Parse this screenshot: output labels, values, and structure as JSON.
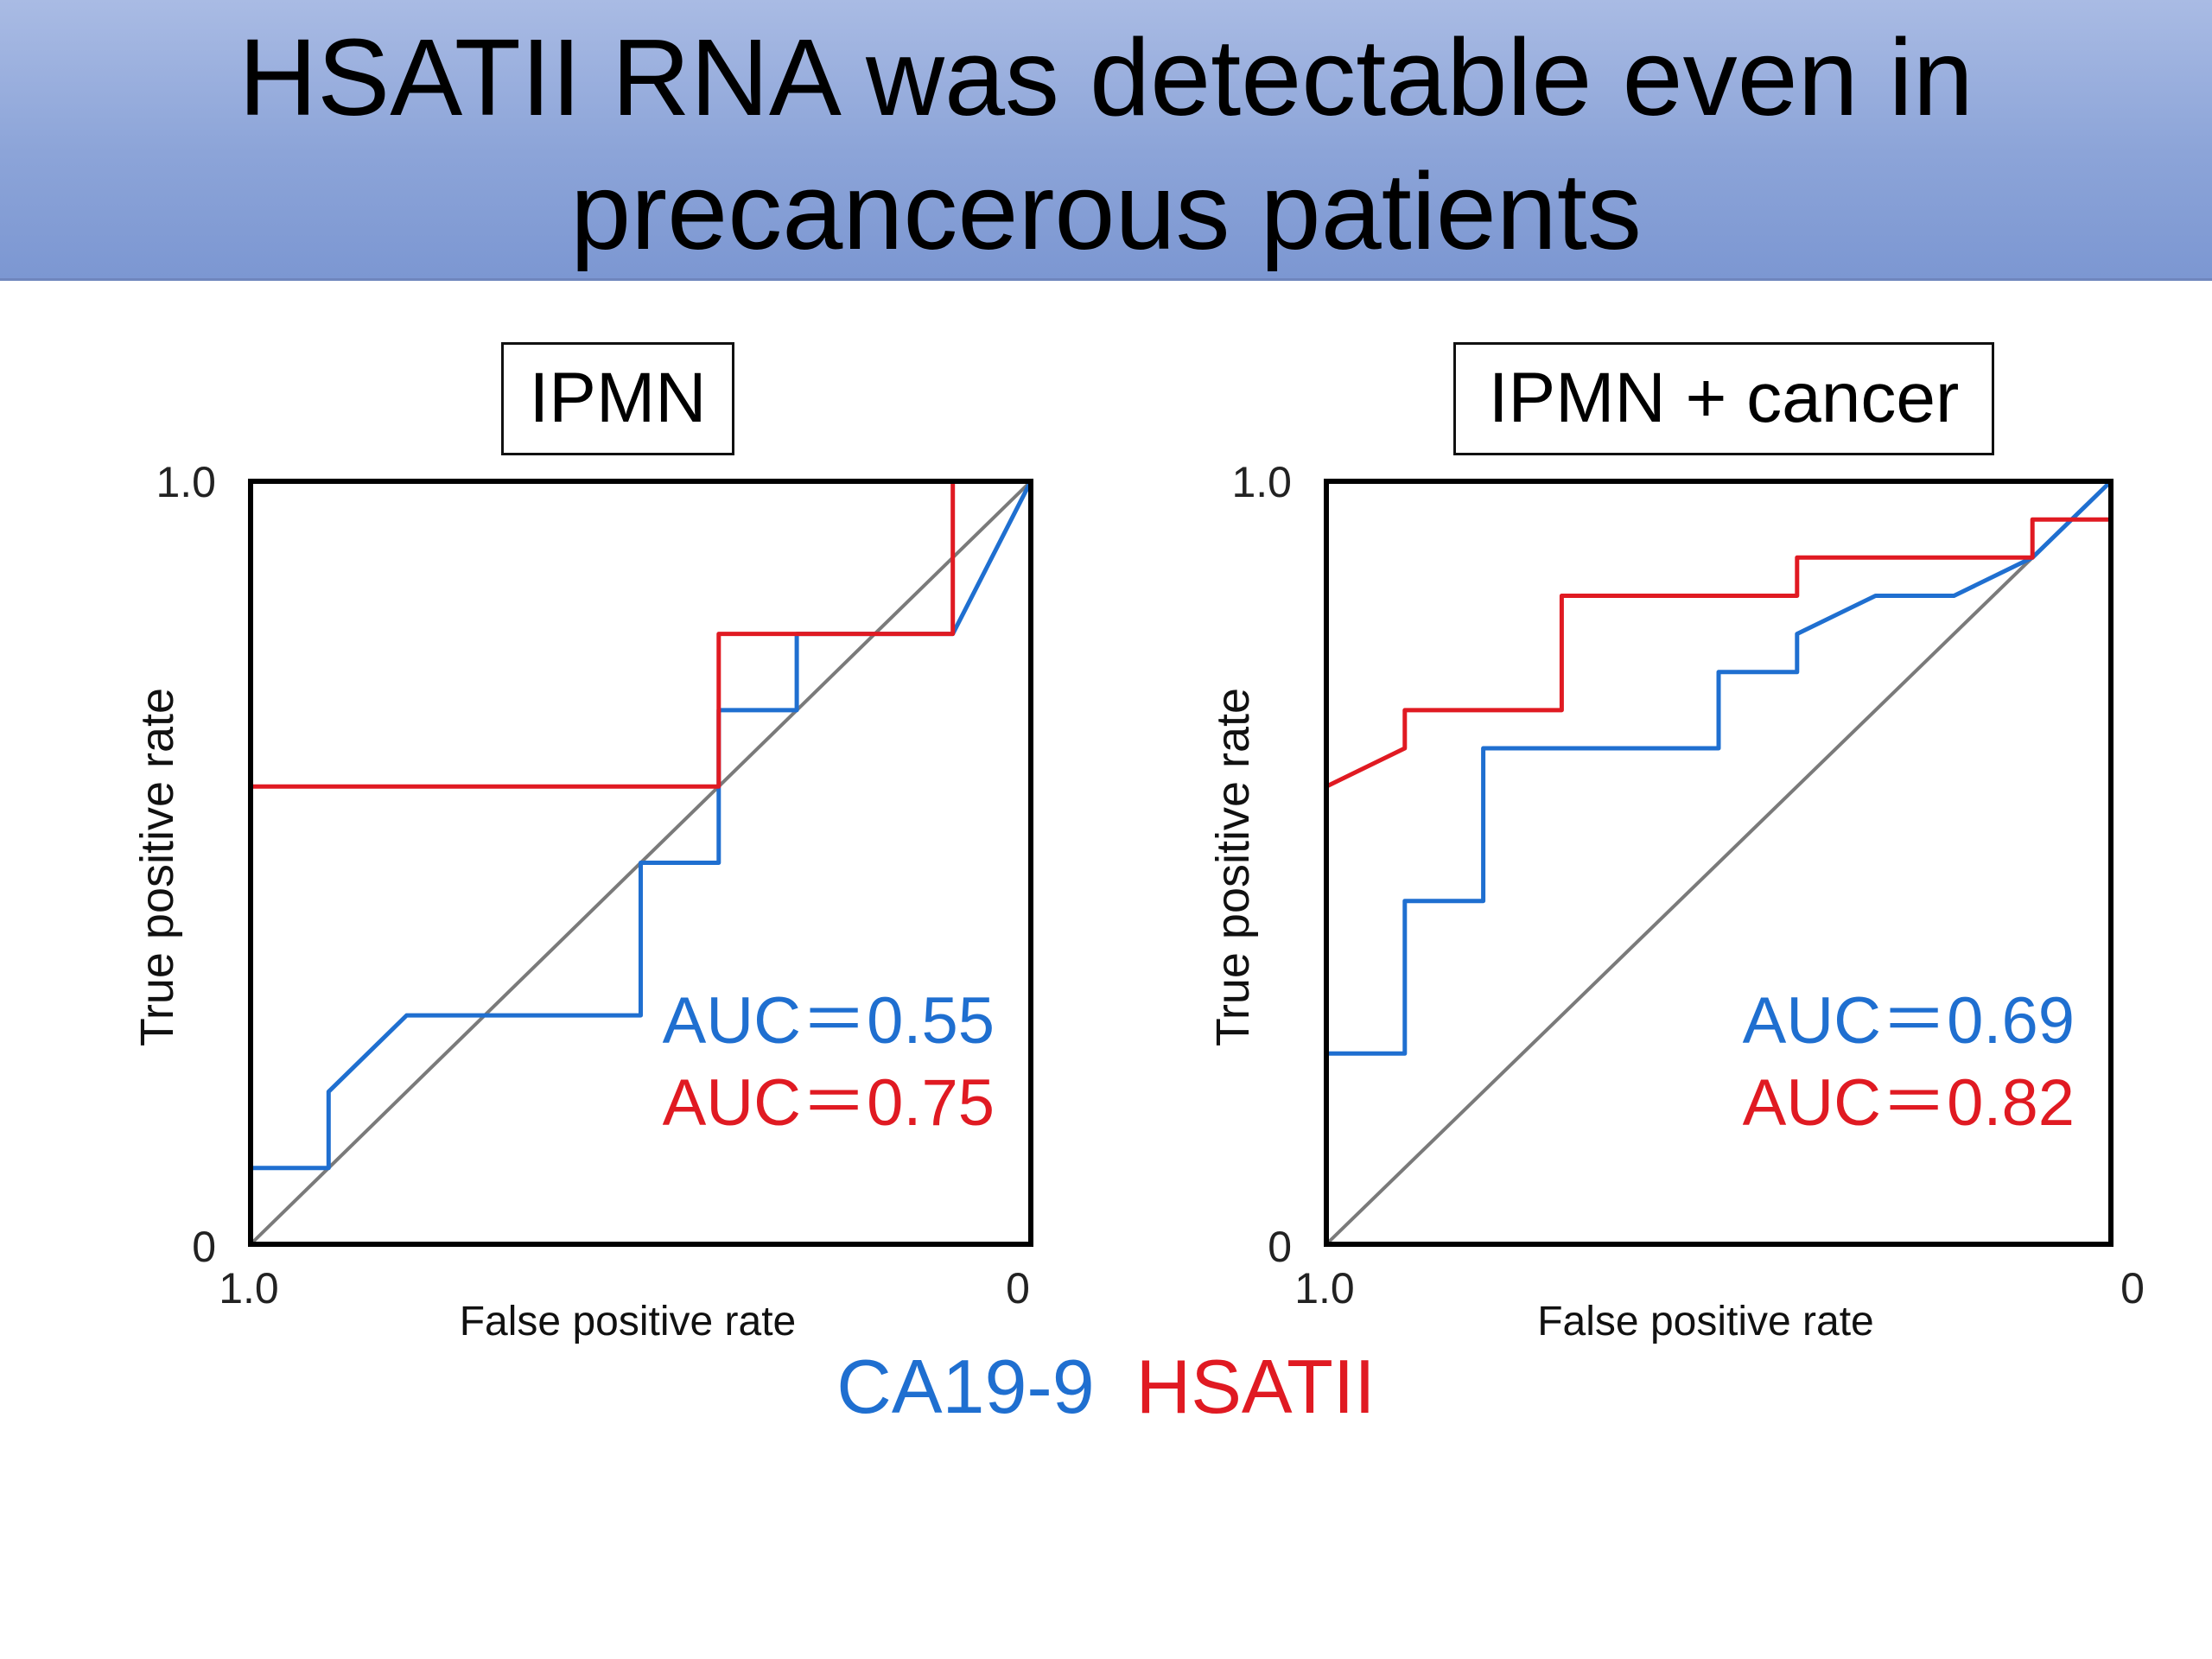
{
  "title": {
    "line1": "HSATII RNA was detectable even in",
    "line2": "precancerous patients"
  },
  "colors": {
    "ca199": "#1f6fd0",
    "hsatii": "#e01a22",
    "diagonal": "#7a7a7a"
  },
  "legend": [
    {
      "label": "CA19-9",
      "color": "#1f6fd0"
    },
    {
      "label": "HSATII",
      "color": "#e01a22"
    }
  ],
  "chart_data": [
    {
      "type": "line",
      "title": "IPMN",
      "xlabel": "False positive rate",
      "ylabel": "True positive rate",
      "xlim": [
        1.0,
        0
      ],
      "ylim": [
        0,
        1.0
      ],
      "x_ticks": [
        "1.0",
        "0"
      ],
      "y_ticks": [
        "0",
        "1.0"
      ],
      "grid": false,
      "diagonal": true,
      "series": [
        {
          "name": "CA19-9",
          "color": "#1f6fd0",
          "auc_label": "AUC＝0.55",
          "points": [
            [
              1.0,
              0
            ],
            [
              1.0,
              0.1
            ],
            [
              0.9,
              0.1
            ],
            [
              0.9,
              0.2
            ],
            [
              0.8,
              0.3
            ],
            [
              0.5,
              0.3
            ],
            [
              0.5,
              0.5
            ],
            [
              0.4,
              0.5
            ],
            [
              0.4,
              0.7
            ],
            [
              0.3,
              0.7
            ],
            [
              0.3,
              0.8
            ],
            [
              0.1,
              0.8
            ],
            [
              0.0,
              1.0
            ]
          ]
        },
        {
          "name": "HSATII",
          "color": "#e01a22",
          "auc_label": "AUC＝0.75",
          "points": [
            [
              1.0,
              0
            ],
            [
              1.0,
              0.6
            ],
            [
              0.4,
              0.6
            ],
            [
              0.4,
              0.8
            ],
            [
              0.1,
              0.8
            ],
            [
              0.1,
              1.0
            ],
            [
              0.0,
              1.0
            ]
          ]
        }
      ]
    },
    {
      "type": "line",
      "title": "IPMN + cancer",
      "xlabel": "False positive rate",
      "ylabel": "True positive rate",
      "xlim": [
        1.0,
        0
      ],
      "ylim": [
        0,
        1.0
      ],
      "x_ticks": [
        "1.0",
        "0"
      ],
      "y_ticks": [
        "0",
        "1.0"
      ],
      "grid": false,
      "diagonal": true,
      "series": [
        {
          "name": "CA19-9",
          "color": "#1f6fd0",
          "auc_label": "AUC＝0.69",
          "points": [
            [
              1.0,
              0
            ],
            [
              1.0,
              0.25
            ],
            [
              0.9,
              0.25
            ],
            [
              0.9,
              0.45
            ],
            [
              0.8,
              0.45
            ],
            [
              0.8,
              0.65
            ],
            [
              0.5,
              0.65
            ],
            [
              0.5,
              0.75
            ],
            [
              0.4,
              0.75
            ],
            [
              0.4,
              0.8
            ],
            [
              0.3,
              0.85
            ],
            [
              0.2,
              0.85
            ],
            [
              0.1,
              0.9
            ],
            [
              0.05,
              0.95
            ],
            [
              0.0,
              1.0
            ]
          ]
        },
        {
          "name": "HSATII",
          "color": "#e01a22",
          "auc_label": "AUC＝0.82",
          "points": [
            [
              1.0,
              0
            ],
            [
              1.0,
              0.6
            ],
            [
              0.9,
              0.65
            ],
            [
              0.9,
              0.7
            ],
            [
              0.7,
              0.7
            ],
            [
              0.7,
              0.85
            ],
            [
              0.4,
              0.85
            ],
            [
              0.4,
              0.9
            ],
            [
              0.1,
              0.9
            ],
            [
              0.1,
              0.95
            ],
            [
              0.0,
              0.95
            ]
          ]
        }
      ]
    }
  ]
}
